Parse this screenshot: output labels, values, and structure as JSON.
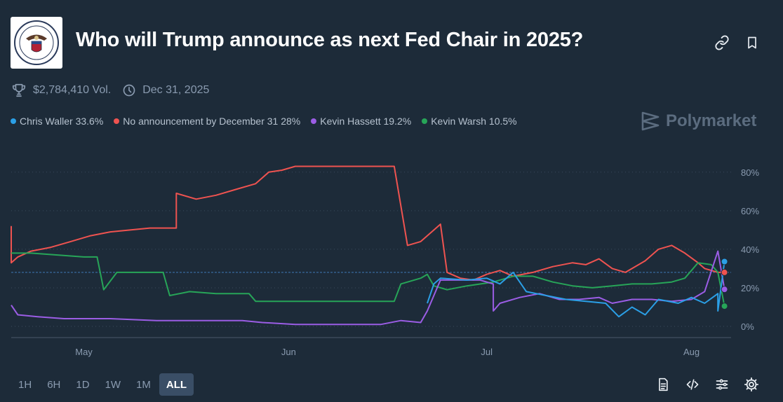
{
  "header": {
    "title": "Who will Trump announce as next Fed Chair in 2025?",
    "logo_icon": "federal-reserve-seal",
    "link_icon": "link-icon",
    "bookmark_icon": "bookmark-icon"
  },
  "meta": {
    "volume": "$2,784,410 Vol.",
    "end_date": "Dec 31, 2025"
  },
  "watermark": "Polymarket",
  "legend": [
    {
      "label": "Chris Waller 33.6%",
      "color": "#2b9fe6"
    },
    {
      "label": "No announcement by December 31 28%",
      "color": "#ef5350"
    },
    {
      "label": "Kevin Hassett 19.2%",
      "color": "#9b5de5"
    },
    {
      "label": "Kevin Warsh 10.5%",
      "color": "#27a558"
    }
  ],
  "ranges": [
    {
      "label": "1H",
      "active": false
    },
    {
      "label": "6H",
      "active": false
    },
    {
      "label": "1D",
      "active": false
    },
    {
      "label": "1W",
      "active": false
    },
    {
      "label": "1M",
      "active": false
    },
    {
      "label": "ALL",
      "active": true
    }
  ],
  "chart_data": {
    "type": "line",
    "x_unit": "date (2025)",
    "x_ticks": [
      {
        "label": "May",
        "x": "2025-05-01"
      },
      {
        "label": "Jun",
        "x": "2025-06-01"
      },
      {
        "label": "Jul",
        "x": "2025-07-01"
      },
      {
        "label": "Aug",
        "x": "2025-08-01"
      }
    ],
    "xlim": [
      "2025-04-20",
      "2025-08-07"
    ],
    "y_ticks": [
      "0%",
      "20%",
      "40%",
      "60%",
      "80%"
    ],
    "ylim": [
      0,
      85
    ],
    "reference_line": 28,
    "series": [
      {
        "name": "No announcement by December 31",
        "color": "#ef5350",
        "end_value": 28,
        "points": [
          [
            "2025-04-20",
            52
          ],
          [
            "2025-04-20",
            33
          ],
          [
            "2025-04-21",
            36
          ],
          [
            "2025-04-23",
            39
          ],
          [
            "2025-04-26",
            41
          ],
          [
            "2025-04-29",
            44
          ],
          [
            "2025-05-02",
            47
          ],
          [
            "2025-05-05",
            49
          ],
          [
            "2025-05-08",
            50
          ],
          [
            "2025-05-11",
            51
          ],
          [
            "2025-05-15",
            51
          ],
          [
            "2025-05-15",
            69
          ],
          [
            "2025-05-18",
            66
          ],
          [
            "2025-05-21",
            68
          ],
          [
            "2025-05-24",
            71
          ],
          [
            "2025-05-27",
            74
          ],
          [
            "2025-05-29",
            80
          ],
          [
            "2025-05-31",
            81
          ],
          [
            "2025-06-02",
            83
          ],
          [
            "2025-06-08",
            83
          ],
          [
            "2025-06-12",
            83
          ],
          [
            "2025-06-17",
            83
          ],
          [
            "2025-06-19",
            42
          ],
          [
            "2025-06-21",
            44
          ],
          [
            "2025-06-24",
            53
          ],
          [
            "2025-06-25",
            28
          ],
          [
            "2025-06-27",
            25
          ],
          [
            "2025-06-29",
            24
          ],
          [
            "2025-07-01",
            27
          ],
          [
            "2025-07-03",
            29
          ],
          [
            "2025-07-05",
            26
          ],
          [
            "2025-07-08",
            28
          ],
          [
            "2025-07-11",
            31
          ],
          [
            "2025-07-14",
            33
          ],
          [
            "2025-07-16",
            32
          ],
          [
            "2025-07-18",
            35
          ],
          [
            "2025-07-20",
            30
          ],
          [
            "2025-07-22",
            28
          ],
          [
            "2025-07-25",
            34
          ],
          [
            "2025-07-27",
            40
          ],
          [
            "2025-07-29",
            42
          ],
          [
            "2025-07-31",
            38
          ],
          [
            "2025-08-02",
            33
          ],
          [
            "2025-08-03",
            30
          ],
          [
            "2025-08-05",
            28
          ],
          [
            "2025-08-06",
            28
          ]
        ]
      },
      {
        "name": "Kevin Warsh",
        "color": "#27a558",
        "end_value": 10.5,
        "points": [
          [
            "2025-04-20",
            38
          ],
          [
            "2025-04-23",
            38
          ],
          [
            "2025-04-27",
            37
          ],
          [
            "2025-05-01",
            36
          ],
          [
            "2025-05-03",
            36
          ],
          [
            "2025-05-04",
            19
          ],
          [
            "2025-05-06",
            28
          ],
          [
            "2025-05-10",
            28
          ],
          [
            "2025-05-13",
            28
          ],
          [
            "2025-05-14",
            16
          ],
          [
            "2025-05-17",
            18
          ],
          [
            "2025-05-21",
            17
          ],
          [
            "2025-05-26",
            17
          ],
          [
            "2025-05-27",
            13
          ],
          [
            "2025-06-01",
            13
          ],
          [
            "2025-06-08",
            13
          ],
          [
            "2025-06-14",
            13
          ],
          [
            "2025-06-17",
            13
          ],
          [
            "2025-06-18",
            22
          ],
          [
            "2025-06-21",
            25
          ],
          [
            "2025-06-22",
            27
          ],
          [
            "2025-06-23",
            21
          ],
          [
            "2025-06-25",
            19
          ],
          [
            "2025-06-28",
            21
          ],
          [
            "2025-07-02",
            23
          ],
          [
            "2025-07-05",
            26
          ],
          [
            "2025-07-08",
            26
          ],
          [
            "2025-07-11",
            23
          ],
          [
            "2025-07-14",
            21
          ],
          [
            "2025-07-17",
            20
          ],
          [
            "2025-07-20",
            21
          ],
          [
            "2025-07-23",
            22
          ],
          [
            "2025-07-26",
            22
          ],
          [
            "2025-07-29",
            23
          ],
          [
            "2025-07-31",
            25
          ],
          [
            "2025-08-02",
            33
          ],
          [
            "2025-08-04",
            32
          ],
          [
            "2025-08-05",
            28
          ],
          [
            "2025-08-06",
            10.5
          ]
        ]
      },
      {
        "name": "Kevin Hassett",
        "color": "#9b5de5",
        "end_value": 19.2,
        "points": [
          [
            "2025-04-20",
            11
          ],
          [
            "2025-04-21",
            6
          ],
          [
            "2025-04-24",
            5
          ],
          [
            "2025-04-28",
            4
          ],
          [
            "2025-05-05",
            4
          ],
          [
            "2025-05-12",
            3
          ],
          [
            "2025-05-19",
            3
          ],
          [
            "2025-05-25",
            3
          ],
          [
            "2025-05-28",
            2
          ],
          [
            "2025-06-02",
            1
          ],
          [
            "2025-06-09",
            1
          ],
          [
            "2025-06-15",
            1
          ],
          [
            "2025-06-18",
            3
          ],
          [
            "2025-06-21",
            2
          ],
          [
            "2025-06-22",
            8
          ],
          [
            "2025-06-24",
            24
          ],
          [
            "2025-06-27",
            24
          ],
          [
            "2025-06-30",
            24
          ],
          [
            "2025-07-02",
            22
          ],
          [
            "2025-07-02",
            8
          ],
          [
            "2025-07-03",
            12
          ],
          [
            "2025-07-06",
            15
          ],
          [
            "2025-07-09",
            17
          ],
          [
            "2025-07-12",
            14
          ],
          [
            "2025-07-15",
            14
          ],
          [
            "2025-07-18",
            15
          ],
          [
            "2025-07-20",
            12
          ],
          [
            "2025-07-23",
            14
          ],
          [
            "2025-07-26",
            14
          ],
          [
            "2025-07-29",
            13
          ],
          [
            "2025-08-01",
            14
          ],
          [
            "2025-08-03",
            18
          ],
          [
            "2025-08-05",
            39
          ],
          [
            "2025-08-06",
            19.2
          ]
        ]
      },
      {
        "name": "Chris Waller",
        "color": "#2b9fe6",
        "end_value": 33.6,
        "points": [
          [
            "2025-06-22",
            12
          ],
          [
            "2025-06-23",
            22
          ],
          [
            "2025-06-24",
            25
          ],
          [
            "2025-06-28",
            24
          ],
          [
            "2025-07-01",
            25
          ],
          [
            "2025-07-03",
            22
          ],
          [
            "2025-07-05",
            28
          ],
          [
            "2025-07-07",
            18
          ],
          [
            "2025-07-10",
            16
          ],
          [
            "2025-07-13",
            14
          ],
          [
            "2025-07-16",
            13
          ],
          [
            "2025-07-19",
            12
          ],
          [
            "2025-07-21",
            5
          ],
          [
            "2025-07-23",
            10
          ],
          [
            "2025-07-25",
            6
          ],
          [
            "2025-07-27",
            14
          ],
          [
            "2025-07-30",
            12
          ],
          [
            "2025-08-01",
            15
          ],
          [
            "2025-08-03",
            12
          ],
          [
            "2025-08-05",
            17
          ],
          [
            "2025-08-05",
            8
          ],
          [
            "2025-08-06",
            33.6
          ]
        ]
      }
    ]
  }
}
